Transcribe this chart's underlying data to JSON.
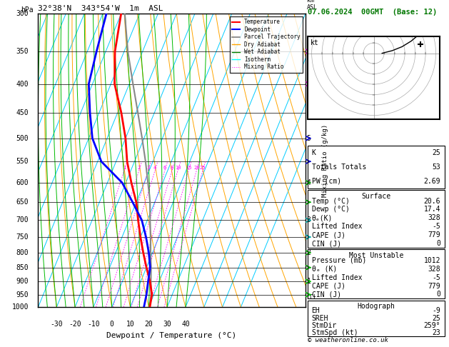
{
  "title_left": "32°38'N  343°54'W  1m  ASL",
  "title_right": "07.06.2024  00GMT  (Base: 12)",
  "xlabel": "Dewpoint / Temperature (°C)",
  "pressure_levels": [
    300,
    350,
    400,
    450,
    500,
    550,
    600,
    650,
    700,
    750,
    800,
    850,
    900,
    950,
    1000
  ],
  "temp_ticks": [
    -30,
    -20,
    -10,
    0,
    10,
    20,
    30,
    40
  ],
  "isotherm_color": "#00ccff",
  "dry_adiabat_color": "#ffa500",
  "wet_adiabat_color": "#00bb00",
  "mixing_ratio_color": "#ff00ff",
  "temperature_color": "#ff0000",
  "dewpoint_color": "#0000ff",
  "parcel_color": "#888888",
  "temp_profile_T": [
    20.6,
    19.0,
    15.0,
    10.0,
    5.0,
    0.0,
    -5.0,
    -10.0,
    -17.0,
    -24.0,
    -30.0,
    -38.0,
    -48.0,
    -55.0,
    -60.0
  ],
  "temp_profile_P": [
    1000,
    950,
    900,
    850,
    800,
    750,
    700,
    650,
    600,
    550,
    500,
    450,
    400,
    350,
    300
  ],
  "dewp_profile_T": [
    17.4,
    16.0,
    14.0,
    12.0,
    8.0,
    3.0,
    -3.0,
    -12.0,
    -22.0,
    -38.0,
    -48.0,
    -55.0,
    -62.0,
    -65.0,
    -68.0
  ],
  "dewp_profile_P": [
    1000,
    950,
    900,
    850,
    800,
    750,
    700,
    650,
    600,
    550,
    500,
    450,
    400,
    350,
    300
  ],
  "parcel_T": [
    20.6,
    18.5,
    15.5,
    12.5,
    9.0,
    5.5,
    1.5,
    -2.5,
    -8.0,
    -14.0,
    -21.0,
    -29.0,
    -38.0,
    -48.0,
    -58.0
  ],
  "parcel_P": [
    1000,
    950,
    900,
    850,
    800,
    750,
    700,
    650,
    600,
    550,
    500,
    450,
    400,
    350,
    300
  ],
  "km_levels": [
    1,
    2,
    3,
    4,
    5,
    6,
    7,
    8
  ],
  "km_pressures": [
    900,
    800,
    700,
    600,
    500,
    450,
    400,
    350
  ],
  "mixing_ratios": [
    1,
    2,
    3,
    4,
    6,
    8,
    10,
    15,
    20,
    25
  ],
  "lcl_pressure": 962,
  "wind_levels_P": [
    350,
    400,
    500,
    550,
    600,
    650,
    700,
    750,
    800,
    850,
    900,
    950
  ],
  "wind_levels_col": [
    "#aa00aa",
    "#aa00aa",
    "#0000cc",
    "#0000cc",
    "#00aa00",
    "#00aa00",
    "#00aaaa",
    "#00aaaa",
    "#00aa00",
    "#00aa00",
    "#00cc00",
    "#00cc00"
  ],
  "stats": {
    "K": 25,
    "Totals_Totals": 53,
    "PW_cm": "2.69",
    "Surf_Temp": "20.6",
    "Surf_Dewp": "17.4",
    "Surf_theta_e": 328,
    "Surf_LI": -5,
    "Surf_CAPE": 779,
    "Surf_CIN": 0,
    "MU_Pressure": 1012,
    "MU_theta_e": 328,
    "MU_LI": -5,
    "MU_CAPE": 779,
    "MU_CIN": 0,
    "EH": -9,
    "SREH": 25,
    "StmDir": "259°",
    "StmSpd_kt": 23
  },
  "hodo_winds_wd": [
    270,
    262,
    257,
    252,
    248
  ],
  "hodo_winds_ws": [
    4,
    9,
    14,
    19,
    23
  ]
}
